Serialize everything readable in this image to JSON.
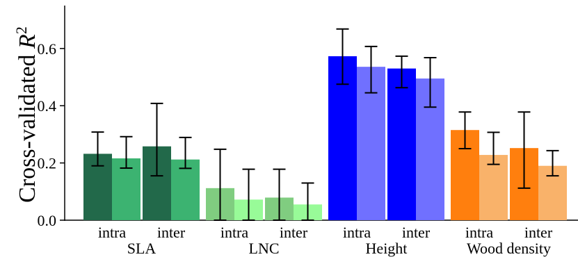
{
  "chart_data": {
    "type": "bar",
    "ylabel": "Cross-validated R²",
    "ylabel_main": "Cross-validated ",
    "ylabel_italic": "R",
    "ylabel_sup": "2",
    "ylim": [
      0,
      0.75
    ],
    "yticks": [
      "0.0",
      "0.2",
      "0.4",
      "0.6"
    ],
    "grid": false,
    "groups": [
      {
        "name": "SLA",
        "colors": {
          "dark": "#22694a",
          "light": "#3cb371"
        },
        "subgroups": [
          {
            "label": "intra",
            "bars": [
              {
                "value": 0.232,
                "err_low": 0.19,
                "err_high": 0.308
              },
              {
                "value": 0.216,
                "err_low": 0.182,
                "err_high": 0.292
              }
            ]
          },
          {
            "label": "inter",
            "bars": [
              {
                "value": 0.258,
                "err_low": 0.155,
                "err_high": 0.408
              },
              {
                "value": 0.212,
                "err_low": 0.181,
                "err_high": 0.289
              }
            ]
          }
        ]
      },
      {
        "name": "LNC",
        "colors": {
          "dark": "#80cd80",
          "light": "#98fb98"
        },
        "subgroups": [
          {
            "label": "intra",
            "bars": [
              {
                "value": 0.112,
                "err_low": 0.0,
                "err_high": 0.248
              },
              {
                "value": 0.072,
                "err_low": 0.0,
                "err_high": 0.178
              }
            ]
          },
          {
            "label": "inter",
            "bars": [
              {
                "value": 0.079,
                "err_low": 0.0,
                "err_high": 0.178
              },
              {
                "value": 0.055,
                "err_low": 0.0,
                "err_high": 0.13
              }
            ]
          }
        ]
      },
      {
        "name": "Height",
        "colors": {
          "dark": "#0000ff",
          "light": "#7070ff"
        },
        "subgroups": [
          {
            "label": "intra",
            "bars": [
              {
                "value": 0.573,
                "err_low": 0.475,
                "err_high": 0.668
              },
              {
                "value": 0.536,
                "err_low": 0.445,
                "err_high": 0.607
              }
            ]
          },
          {
            "label": "inter",
            "bars": [
              {
                "value": 0.53,
                "err_low": 0.463,
                "err_high": 0.573
              },
              {
                "value": 0.495,
                "err_low": 0.395,
                "err_high": 0.568
              }
            ]
          }
        ]
      },
      {
        "name": "Wood density",
        "colors": {
          "dark": "#ff7f0e",
          "light": "#f9b26a"
        },
        "subgroups": [
          {
            "label": "intra",
            "bars": [
              {
                "value": 0.315,
                "err_low": 0.25,
                "err_high": 0.378
              },
              {
                "value": 0.228,
                "err_low": 0.195,
                "err_high": 0.307
              }
            ]
          },
          {
            "label": "inter",
            "bars": [
              {
                "value": 0.252,
                "err_low": 0.112,
                "err_high": 0.378
              },
              {
                "value": 0.19,
                "err_low": 0.155,
                "err_high": 0.243
              }
            ]
          }
        ]
      }
    ]
  }
}
